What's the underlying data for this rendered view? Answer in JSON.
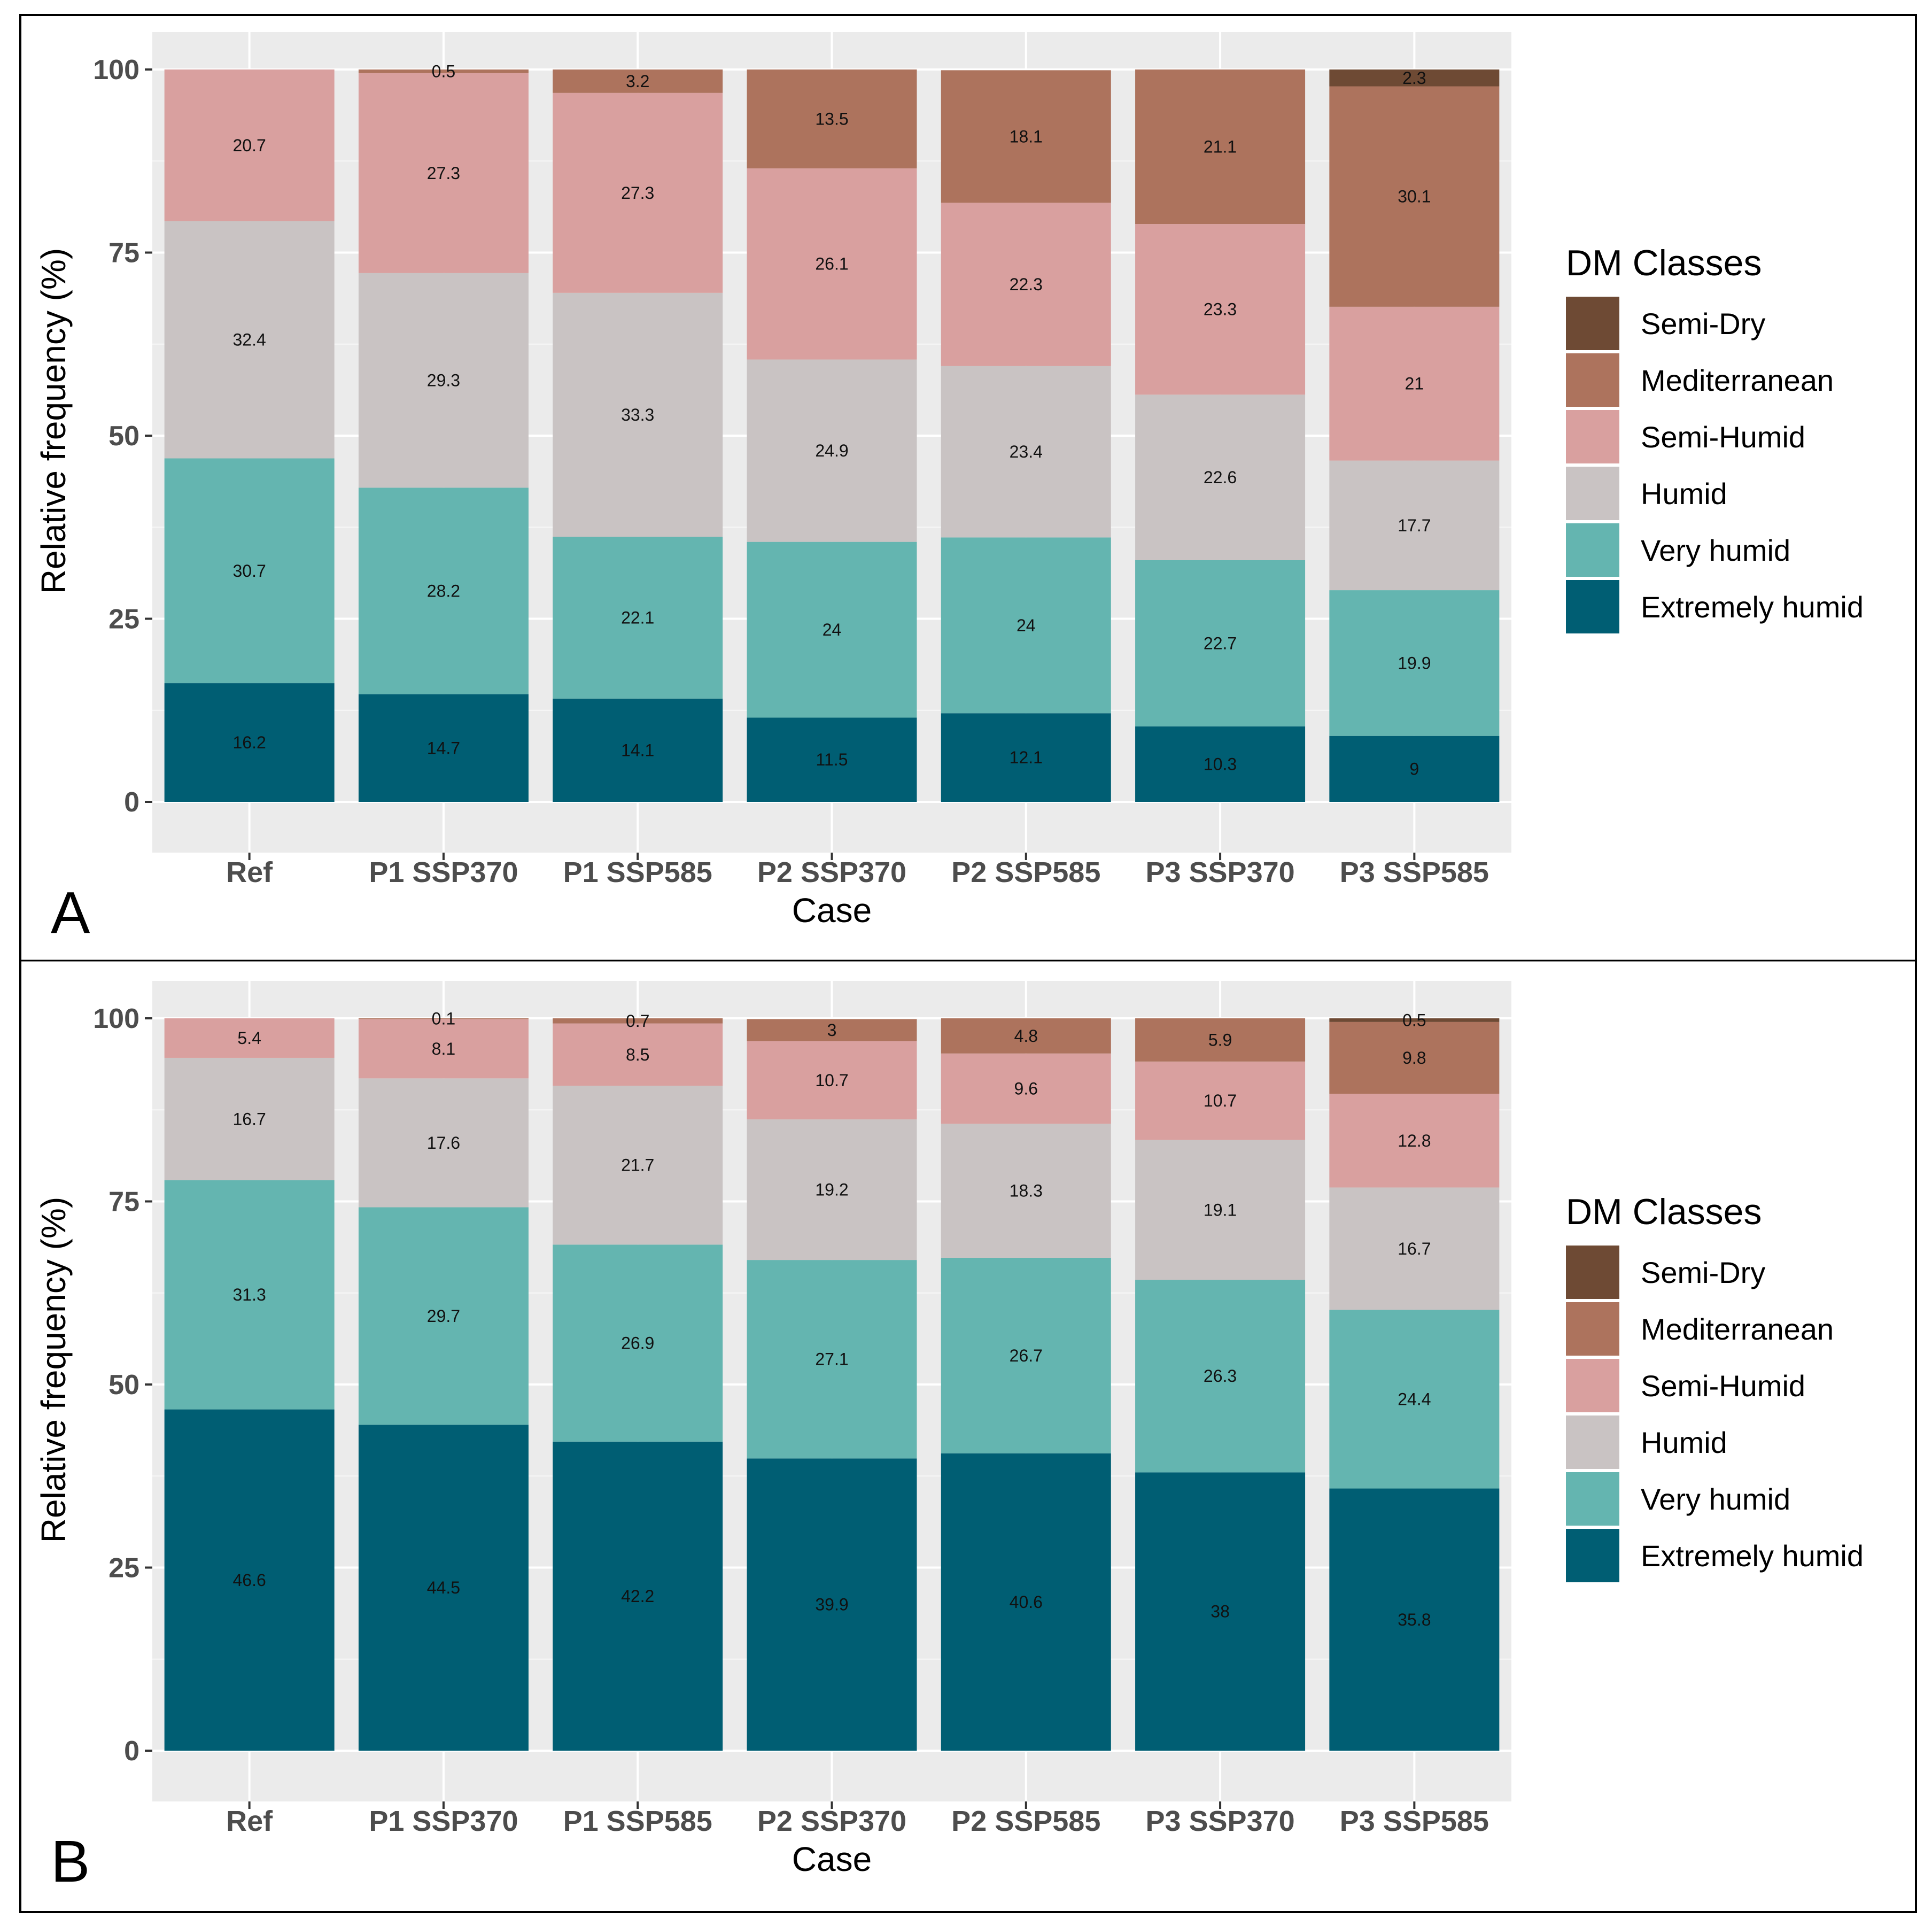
{
  "chart_data": [
    {
      "type": "bar",
      "stacked": true,
      "panel": "A",
      "xlabel": "Case",
      "ylabel": "Relative frequency (%)",
      "ylim": [
        0,
        100
      ],
      "yticks": [
        "0",
        "25",
        "50",
        "75",
        "100"
      ],
      "categories": [
        "Ref",
        "P1 SSP370",
        "P1 SSP585",
        "P2 SSP370",
        "P2 SSP585",
        "P3 SSP370",
        "P3 SSP585"
      ],
      "legend_title": "DM Classes",
      "legend_position": "right",
      "series": [
        {
          "name": "Extremely humid",
          "color": "#005e73",
          "values": [
            16.2,
            14.7,
            14.1,
            11.5,
            12.1,
            10.3,
            9
          ],
          "labels": [
            "16.2",
            "14.7",
            "14.1",
            "11.5",
            "12.1",
            "10.3",
            "9"
          ]
        },
        {
          "name": "Very humid",
          "color": "#64b5b0",
          "values": [
            30.7,
            28.2,
            22.1,
            24,
            24,
            22.7,
            19.9
          ],
          "labels": [
            "30.7",
            "28.2",
            "22.1",
            "24",
            "24",
            "22.7",
            "19.9"
          ]
        },
        {
          "name": "Humid",
          "color": "#c9c3c3",
          "values": [
            32.4,
            29.3,
            33.3,
            24.9,
            23.4,
            22.6,
            17.7
          ],
          "labels": [
            "32.4",
            "29.3",
            "33.3",
            "24.9",
            "23.4",
            "22.6",
            "17.7"
          ]
        },
        {
          "name": "Semi-Humid",
          "color": "#d9a09f",
          "values": [
            20.7,
            27.3,
            27.3,
            26.1,
            22.3,
            23.3,
            21
          ],
          "labels": [
            "20.7",
            "27.3",
            "27.3",
            "26.1",
            "22.3",
            "23.3",
            "21"
          ]
        },
        {
          "name": "Mediterranean",
          "color": "#ad735d",
          "values": [
            0,
            0.5,
            3.2,
            13.5,
            18.1,
            21.1,
            30.1
          ],
          "labels": [
            "",
            "0.5",
            "3.2",
            "13.5",
            "18.1",
            "21.1",
            "30.1"
          ]
        },
        {
          "name": "Semi-Dry",
          "color": "#6e4a34",
          "values": [
            0,
            0,
            0,
            0,
            0,
            0,
            2.3
          ],
          "labels": [
            "",
            "",
            "",
            "",
            "",
            "",
            "2.3"
          ]
        }
      ]
    },
    {
      "type": "bar",
      "stacked": true,
      "panel": "B",
      "xlabel": "Case",
      "ylabel": "Relative frequency (%)",
      "ylim": [
        0,
        100
      ],
      "yticks": [
        "0",
        "25",
        "50",
        "75",
        "100"
      ],
      "categories": [
        "Ref",
        "P1 SSP370",
        "P1 SSP585",
        "P2 SSP370",
        "P2 SSP585",
        "P3 SSP370",
        "P3 SSP585"
      ],
      "legend_title": "DM Classes",
      "legend_position": "right",
      "series": [
        {
          "name": "Extremely humid",
          "color": "#005e73",
          "values": [
            46.6,
            44.5,
            42.2,
            39.9,
            40.6,
            38,
            35.8
          ],
          "labels": [
            "46.6",
            "44.5",
            "42.2",
            "39.9",
            "40.6",
            "38",
            "35.8"
          ]
        },
        {
          "name": "Very humid",
          "color": "#64b5b0",
          "values": [
            31.3,
            29.7,
            26.9,
            27.1,
            26.7,
            26.3,
            24.4
          ],
          "labels": [
            "31.3",
            "29.7",
            "26.9",
            "27.1",
            "26.7",
            "26.3",
            "24.4"
          ]
        },
        {
          "name": "Humid",
          "color": "#c9c3c3",
          "values": [
            16.7,
            17.6,
            21.7,
            19.2,
            18.3,
            19.1,
            16.7
          ],
          "labels": [
            "16.7",
            "17.6",
            "21.7",
            "19.2",
            "18.3",
            "19.1",
            "16.7"
          ]
        },
        {
          "name": "Semi-Humid",
          "color": "#d9a09f",
          "values": [
            5.4,
            8.1,
            8.5,
            10.7,
            9.6,
            10.7,
            12.8
          ],
          "labels": [
            "5.4",
            "8.1",
            "8.5",
            "10.7",
            "9.6",
            "10.7",
            "12.8"
          ]
        },
        {
          "name": "Mediterranean",
          "color": "#ad735d",
          "values": [
            0,
            0.1,
            0.7,
            3,
            4.8,
            5.9,
            9.8
          ],
          "labels": [
            "",
            "0.1",
            "0.7",
            "3",
            "4.8",
            "5.9",
            "9.8"
          ]
        },
        {
          "name": "Semi-Dry",
          "color": "#6e4a34",
          "values": [
            0,
            0,
            0,
            0,
            0,
            0,
            0.5
          ],
          "labels": [
            "",
            "",
            "",
            "",
            "",
            "",
            "0.5"
          ]
        }
      ]
    }
  ]
}
